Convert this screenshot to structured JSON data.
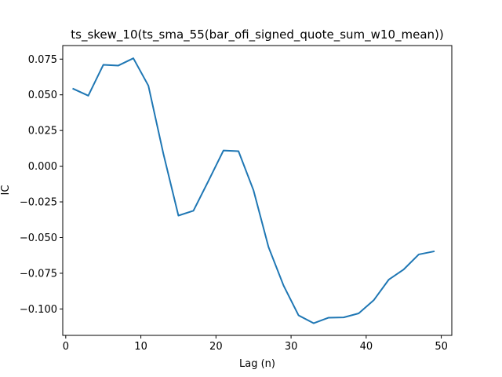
{
  "chart_data": {
    "type": "line",
    "title": "ts_skew_10(ts_sma_55(bar_ofi_signed_quote_sum_w10_mean))",
    "xlabel": "Lag (n)",
    "ylabel": "IC",
    "xlim": [
      -0.4,
      51.4
    ],
    "ylim": [
      -0.1185,
      0.0845
    ],
    "xticks": [
      0,
      10,
      20,
      30,
      40,
      50
    ],
    "xtick_labels": [
      "0",
      "10",
      "20",
      "30",
      "40",
      "50"
    ],
    "yticks": [
      0.075,
      0.05,
      0.025,
      0.0,
      -0.025,
      -0.05,
      -0.075,
      -0.1
    ],
    "ytick_labels": [
      "0.075",
      "0.050",
      "0.025",
      "0.000",
      "−0.025",
      "−0.050",
      "−0.075",
      "−0.100"
    ],
    "grid": false,
    "legend": "none",
    "series": [
      {
        "color": "#1f77b4",
        "x": [
          1,
          3,
          5,
          7,
          9,
          11,
          13,
          15,
          17,
          19,
          21,
          23,
          25,
          27,
          29,
          31,
          33,
          35,
          37,
          39,
          41,
          43,
          45,
          47,
          49
        ],
        "y": [
          0.0542,
          0.0494,
          0.071,
          0.0705,
          0.0756,
          0.0564,
          0.0087,
          -0.0346,
          -0.0312,
          -0.0103,
          0.011,
          0.0105,
          -0.0169,
          -0.0567,
          -0.0836,
          -0.1045,
          -0.11,
          -0.1061,
          -0.1059,
          -0.1031,
          -0.0939,
          -0.0795,
          -0.0723,
          -0.0618,
          -0.0597
        ]
      }
    ]
  }
}
